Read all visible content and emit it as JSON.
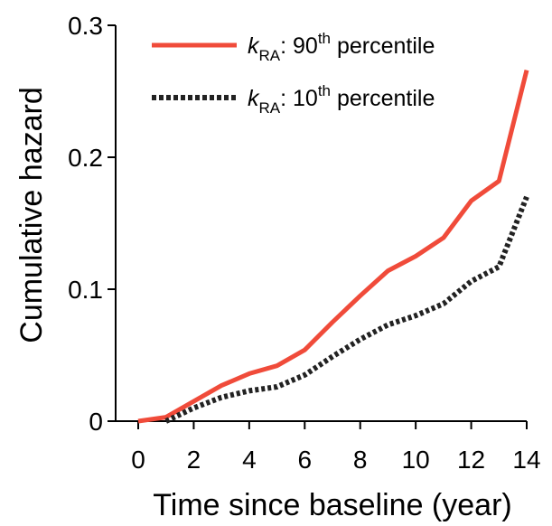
{
  "chart_data": {
    "type": "line",
    "xlabel": "Time since baseline (year)",
    "ylabel": "Cumulative hazard",
    "xlim": [
      0,
      14
    ],
    "ylim": [
      0,
      0.3
    ],
    "xticks": [
      0,
      2,
      4,
      6,
      8,
      10,
      12,
      14
    ],
    "xtick_labels": [
      "0",
      "2",
      "4",
      "6",
      "8",
      "10",
      "12",
      "14"
    ],
    "yticks": [
      0,
      0.1,
      0.2,
      0.3
    ],
    "ytick_labels": [
      "0",
      "0.1",
      "0.2",
      "0.3"
    ],
    "grid": false,
    "legend_position": "top-left",
    "series": [
      {
        "name": "k_RA: 90th percentile",
        "legend": {
          "symbol": "k",
          "sub": "RA",
          "mid": ": 90",
          "sup": "th",
          "tail": " percentile"
        },
        "color": "#f04b3a",
        "style": "solid",
        "x": [
          0,
          1,
          2,
          3,
          4,
          5,
          6,
          7,
          8,
          9,
          10,
          11,
          12,
          13,
          14
        ],
        "y": [
          0,
          0.003,
          0.015,
          0.027,
          0.036,
          0.042,
          0.054,
          0.075,
          0.095,
          0.114,
          0.125,
          0.139,
          0.167,
          0.182,
          0.266
        ]
      },
      {
        "name": "k_RA: 10th percentile",
        "legend": {
          "symbol": "k",
          "sub": "RA",
          "mid": ": 10",
          "sup": "th",
          "tail": " percentile"
        },
        "color": "#222222",
        "style": "dotted",
        "x": [
          1,
          2,
          3,
          4,
          5,
          6,
          7,
          8,
          9,
          10,
          11,
          12,
          13,
          14
        ],
        "y": [
          0,
          0.01,
          0.018,
          0.023,
          0.026,
          0.035,
          0.049,
          0.062,
          0.073,
          0.08,
          0.089,
          0.106,
          0.117,
          0.17
        ]
      }
    ]
  }
}
